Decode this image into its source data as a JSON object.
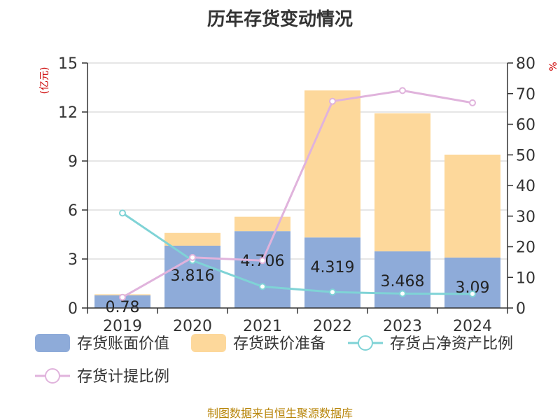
{
  "chart_data": {
    "type": "bar",
    "title": "历年存货变动情况",
    "categories": [
      "2019",
      "2020",
      "2021",
      "2022",
      "2023",
      "2024"
    ],
    "left_axis": {
      "unit": "(亿元)",
      "min": 0,
      "max": 15,
      "ticks": [
        0,
        3,
        6,
        9,
        12,
        15
      ]
    },
    "right_axis": {
      "unit": "%",
      "min": 0,
      "max": 80,
      "ticks": [
        0,
        10,
        20,
        30,
        40,
        50,
        60,
        70,
        80
      ]
    },
    "stacked": true,
    "series": [
      {
        "name": "存货账面价值",
        "kind": "bar",
        "axis": "left",
        "color": "#8eabd9",
        "values": [
          0.78,
          3.816,
          4.706,
          4.319,
          3.468,
          3.09
        ],
        "labels": [
          "0.78",
          "3.816",
          "4.706",
          "4.319",
          "3.468",
          "3.09"
        ]
      },
      {
        "name": "存货跌价准备",
        "kind": "bar",
        "axis": "left",
        "color": "#fdd89b",
        "values": [
          0.06,
          0.78,
          0.88,
          9.0,
          8.45,
          6.3
        ]
      },
      {
        "name": "存货占净资产比例",
        "kind": "line",
        "axis": "right",
        "color": "#7fd3d6",
        "values": [
          31,
          15.5,
          7,
          5.2,
          4.7,
          4.6
        ]
      },
      {
        "name": "存货计提比例",
        "kind": "line",
        "axis": "right",
        "color": "#e0b3dc",
        "values": [
          3.5,
          16.5,
          15.5,
          67.5,
          71,
          67
        ]
      }
    ],
    "grid": true,
    "legend_position": "bottom"
  },
  "footer": {
    "source": "制图数据来自恒生聚源数据库"
  }
}
